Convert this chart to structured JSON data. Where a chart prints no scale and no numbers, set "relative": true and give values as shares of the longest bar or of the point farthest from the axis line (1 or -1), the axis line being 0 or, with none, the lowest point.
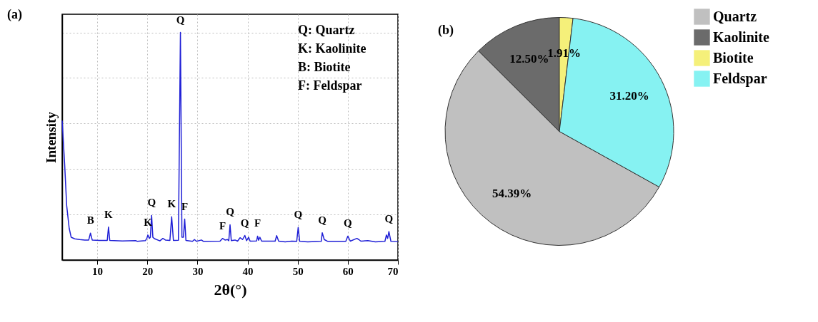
{
  "chart_data": [
    {
      "type": "line",
      "title": "(a)",
      "xlabel": "2θ(°)",
      "ylabel": "Intensity",
      "relative": true,
      "grid": true,
      "color": "#1f1fd6",
      "xlim": [
        3,
        70
      ],
      "xticks": [
        10,
        20,
        30,
        40,
        50,
        60,
        70
      ],
      "x": [
        3.0,
        3.5,
        3.9,
        4.4,
        4.8,
        5.5,
        6.5,
        7.5,
        8.3,
        8.65,
        9.0,
        10.5,
        12.0,
        12.25,
        12.5,
        15,
        17.7,
        18,
        19.6,
        19.9,
        20.1,
        20.4,
        20.6,
        20.85,
        21.1,
        21.5,
        22.5,
        23.1,
        23.6,
        24.5,
        24.85,
        25.2,
        26.2,
        26.6,
        26.9,
        27.2,
        27.45,
        27.7,
        29.0,
        29.4,
        29.8,
        30.8,
        31.2,
        34.5,
        35.0,
        35.5,
        36.0,
        36.25,
        36.5,
        36.75,
        37.5,
        38.0,
        38.5,
        39.0,
        39.45,
        39.8,
        40.2,
        40.5,
        41.8,
        42.0,
        42.2,
        42.45,
        42.8,
        45.5,
        45.8,
        46.2,
        47.5,
        48.8,
        49.8,
        50.1,
        50.4,
        52,
        54.7,
        54.9,
        55.3,
        56,
        59.6,
        60.0,
        60.5,
        61.8,
        62.2,
        62.6,
        64,
        65.5,
        67.4,
        67.7,
        67.95,
        68.2,
        68.6,
        70
      ],
      "values": [
        0.613,
        0.42,
        0.24,
        0.14,
        0.1,
        0.093,
        0.09,
        0.088,
        0.088,
        0.118,
        0.088,
        0.086,
        0.086,
        0.145,
        0.086,
        0.084,
        0.085,
        0.082,
        0.085,
        0.095,
        0.11,
        0.095,
        0.1,
        0.196,
        0.1,
        0.093,
        0.084,
        0.095,
        0.088,
        0.086,
        0.19,
        0.086,
        0.087,
        1.0,
        0.1,
        0.1,
        0.18,
        0.086,
        0.082,
        0.09,
        0.082,
        0.088,
        0.082,
        0.083,
        0.095,
        0.088,
        0.09,
        0.085,
        0.155,
        0.085,
        0.088,
        0.083,
        0.098,
        0.09,
        0.108,
        0.085,
        0.1,
        0.083,
        0.084,
        0.105,
        0.087,
        0.1,
        0.083,
        0.083,
        0.107,
        0.083,
        0.08,
        0.083,
        0.082,
        0.143,
        0.082,
        0.08,
        0.082,
        0.12,
        0.09,
        0.082,
        0.082,
        0.105,
        0.083,
        0.095,
        0.09,
        0.083,
        0.085,
        0.08,
        0.082,
        0.11,
        0.095,
        0.125,
        0.082,
        0.081
      ],
      "annotations": [
        {
          "text": "B",
          "x": 8.65,
          "y": 0.118
        },
        {
          "text": "K",
          "x": 12.25,
          "y": 0.145
        },
        {
          "text": "K",
          "x": 20.1,
          "y": 0.11
        },
        {
          "text": "Q",
          "x": 20.85,
          "y": 0.196
        },
        {
          "text": "K",
          "x": 24.85,
          "y": 0.19
        },
        {
          "text": "Q",
          "x": 26.6,
          "y": 1.0
        },
        {
          "text": "F",
          "x": 27.45,
          "y": 0.18
        },
        {
          "text": "F",
          "x": 35.0,
          "y": 0.095
        },
        {
          "text": "Q",
          "x": 36.5,
          "y": 0.155
        },
        {
          "text": "Q",
          "x": 39.45,
          "y": 0.108
        },
        {
          "text": "F",
          "x": 42.0,
          "y": 0.105
        },
        {
          "text": "Q",
          "x": 50.1,
          "y": 0.143
        },
        {
          "text": "Q",
          "x": 54.9,
          "y": 0.12
        },
        {
          "text": "Q",
          "x": 60.0,
          "y": 0.105
        },
        {
          "text": "Q",
          "x": 68.2,
          "y": 0.125
        },
        "Q: Quartz",
        "K: Kaolinite",
        "B: Biotite",
        "F: Feldspar"
      ]
    },
    {
      "type": "pie",
      "title": "(b)",
      "legend": "right",
      "categories": [
        "Quartz",
        "Kaolinite",
        "Biotite",
        "Feldspar"
      ],
      "values": [
        54.39,
        12.5,
        1.91,
        31.2
      ],
      "value_labels": [
        "54.39%",
        "12.50%",
        "1.91%",
        "31.20%"
      ],
      "colors": [
        "#c0c0c0",
        "#6b6b6b",
        "#f5f07a",
        "#86f2f2"
      ]
    }
  ]
}
